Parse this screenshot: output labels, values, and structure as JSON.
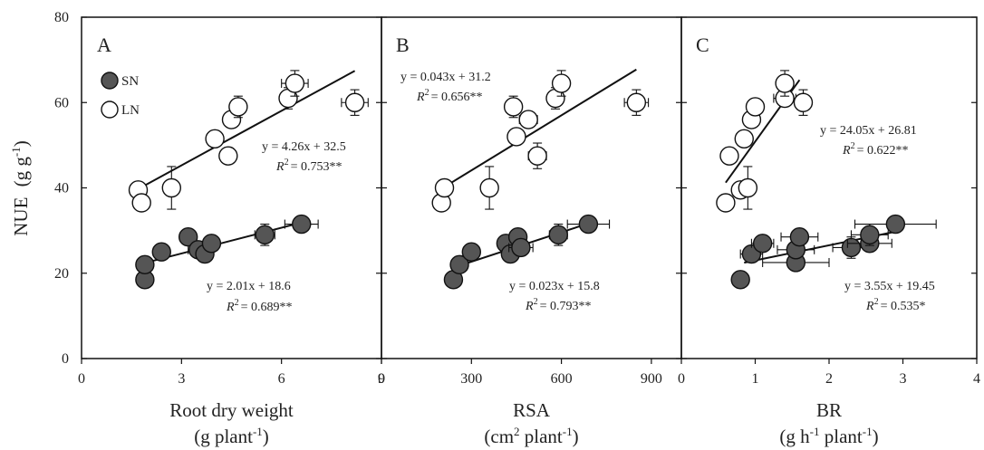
{
  "figure": {
    "ylabel": "NUE",
    "ylabel_unit": "(g g",
    "ylabel_sup": "-1",
    "ylabel_close": ")"
  },
  "legend": {
    "series": [
      "SN",
      "LN"
    ]
  },
  "chart_data": [
    {
      "type": "scatter",
      "panel": "A",
      "xlabel": "Root dry weight",
      "xunit": {
        "pre": "(g plant",
        "sup": "-1",
        "post": ")"
      },
      "xlim": [
        0,
        9
      ],
      "xticks": [
        0,
        3,
        6,
        9
      ],
      "ylim": [
        0,
        80
      ],
      "yticks": [
        0,
        20,
        40,
        60,
        80
      ],
      "series": [
        {
          "name": "SN",
          "fill": "#555555",
          "points": [
            {
              "x": 1.9,
              "y": 18.5,
              "xerr": 0,
              "yerr": 0
            },
            {
              "x": 1.9,
              "y": 22,
              "xerr": 0,
              "yerr": 0
            },
            {
              "x": 2.4,
              "y": 25,
              "xerr": 0,
              "yerr": 0
            },
            {
              "x": 3.2,
              "y": 28.5,
              "xerr": 0,
              "yerr": 0
            },
            {
              "x": 3.5,
              "y": 25.5,
              "xerr": 0.3,
              "yerr": 0
            },
            {
              "x": 3.7,
              "y": 24.5,
              "xerr": 0,
              "yerr": 0
            },
            {
              "x": 3.9,
              "y": 27,
              "xerr": 0,
              "yerr": 0
            },
            {
              "x": 5.5,
              "y": 29,
              "xerr": 0.3,
              "yerr": 2.5
            },
            {
              "x": 6.6,
              "y": 31.5,
              "xerr": 0.5,
              "yerr": 0
            }
          ],
          "fit": {
            "slope": 2.01,
            "intercept": 18.6,
            "x": [
              1.8,
              6.6
            ]
          },
          "equation": "y = 2.01x + 18.6",
          "r2": "= 0.689**"
        },
        {
          "name": "LN",
          "fill": "#ffffff",
          "points": [
            {
              "x": 1.7,
              "y": 39.5,
              "xerr": 0,
              "yerr": 0
            },
            {
              "x": 1.8,
              "y": 36.5,
              "xerr": 0,
              "yerr": 0
            },
            {
              "x": 2.7,
              "y": 40,
              "xerr": 0,
              "yerr": 5
            },
            {
              "x": 4.0,
              "y": 51.5,
              "xerr": 0,
              "yerr": 0
            },
            {
              "x": 4.4,
              "y": 47.5,
              "xerr": 0,
              "yerr": 0
            },
            {
              "x": 4.5,
              "y": 56,
              "xerr": 0,
              "yerr": 0
            },
            {
              "x": 4.7,
              "y": 59,
              "xerr": 0,
              "yerr": 2.5
            },
            {
              "x": 6.2,
              "y": 61,
              "xerr": 0,
              "yerr": 2.5
            },
            {
              "x": 6.4,
              "y": 64.5,
              "xerr": 0.4,
              "yerr": 3
            },
            {
              "x": 8.2,
              "y": 60,
              "xerr": 0.4,
              "yerr": 3
            }
          ],
          "fit": {
            "slope": 4.26,
            "intercept": 32.5,
            "x": [
              1.8,
              8.2
            ]
          },
          "equation": "y = 4.26x + 32.5",
          "r2": "= 0.753**"
        }
      ]
    },
    {
      "type": "scatter",
      "panel": "B",
      "xlabel": "RSA",
      "xunit": {
        "pre": "(cm",
        "sup1": "2",
        "mid": " plant",
        "sup": "-1",
        "post": ")"
      },
      "xlim": [
        0,
        1000
      ],
      "xticks": [
        0,
        300,
        600,
        900
      ],
      "ylim": [
        0,
        80
      ],
      "yticks": [
        0,
        20,
        40,
        60,
        80
      ],
      "series": [
        {
          "name": "SN",
          "fill": "#555555",
          "points": [
            {
              "x": 240,
              "y": 18.5,
              "xerr": 0,
              "yerr": 0
            },
            {
              "x": 260,
              "y": 22,
              "xerr": 0,
              "yerr": 0
            },
            {
              "x": 300,
              "y": 25,
              "xerr": 0,
              "yerr": 0
            },
            {
              "x": 415,
              "y": 27,
              "xerr": 0,
              "yerr": 0
            },
            {
              "x": 430,
              "y": 24.5,
              "xerr": 0,
              "yerr": 0
            },
            {
              "x": 455,
              "y": 28.5,
              "xerr": 0,
              "yerr": 0
            },
            {
              "x": 465,
              "y": 26,
              "xerr": 40,
              "yerr": 0
            },
            {
              "x": 590,
              "y": 29,
              "xerr": 30,
              "yerr": 2.5
            },
            {
              "x": 690,
              "y": 31.5,
              "xerr": 70,
              "yerr": 0
            }
          ],
          "fit": {
            "slope": 0.023,
            "intercept": 15.8,
            "x": [
              240,
              700
            ]
          },
          "equation": "y = 0.023x + 15.8",
          "r2": "= 0.793**"
        },
        {
          "name": "LN",
          "fill": "#ffffff",
          "points": [
            {
              "x": 200,
              "y": 36.5,
              "xerr": 0,
              "yerr": 0
            },
            {
              "x": 210,
              "y": 40,
              "xerr": 0,
              "yerr": 0
            },
            {
              "x": 360,
              "y": 40,
              "xerr": 0,
              "yerr": 5
            },
            {
              "x": 440,
              "y": 59,
              "xerr": 0,
              "yerr": 2.5
            },
            {
              "x": 450,
              "y": 52,
              "xerr": 0,
              "yerr": 0
            },
            {
              "x": 490,
              "y": 56,
              "xerr": 30,
              "yerr": 0
            },
            {
              "x": 520,
              "y": 47.5,
              "xerr": 30,
              "yerr": 3
            },
            {
              "x": 580,
              "y": 61,
              "xerr": 0,
              "yerr": 2.5
            },
            {
              "x": 600,
              "y": 64.5,
              "xerr": 0,
              "yerr": 3
            },
            {
              "x": 850,
              "y": 60,
              "xerr": 40,
              "yerr": 3
            }
          ],
          "fit": {
            "slope": 0.043,
            "intercept": 31.2,
            "x": [
              210,
              850
            ]
          },
          "equation": "y = 0.043x + 31.2",
          "r2": "= 0.656**"
        }
      ]
    },
    {
      "type": "scatter",
      "panel": "C",
      "xlabel": "BR",
      "xunit": {
        "pre": "(g h",
        "sup1": "-1",
        "mid": " plant",
        "sup": "-1",
        "post": ")"
      },
      "xlim": [
        0,
        4
      ],
      "xticks": [
        0,
        1,
        2,
        3,
        4
      ],
      "ylim": [
        0,
        80
      ],
      "yticks": [
        0,
        20,
        40,
        60,
        80
      ],
      "series": [
        {
          "name": "SN",
          "fill": "#555555",
          "points": [
            {
              "x": 0.8,
              "y": 18.5,
              "xerr": 0,
              "yerr": 0
            },
            {
              "x": 0.95,
              "y": 24.5,
              "xerr": 0.15,
              "yerr": 0
            },
            {
              "x": 1.1,
              "y": 27,
              "xerr": 0.15,
              "yerr": 0
            },
            {
              "x": 1.55,
              "y": 22.5,
              "xerr": 0.45,
              "yerr": 0
            },
            {
              "x": 1.55,
              "y": 25.5,
              "xerr": 0.25,
              "yerr": 0
            },
            {
              "x": 1.6,
              "y": 28.5,
              "xerr": 0.25,
              "yerr": 0
            },
            {
              "x": 2.3,
              "y": 26,
              "xerr": 0.25,
              "yerr": 2.5
            },
            {
              "x": 2.55,
              "y": 27,
              "xerr": 0.3,
              "yerr": 0
            },
            {
              "x": 2.55,
              "y": 29,
              "xerr": 0.25,
              "yerr": 2.5
            },
            {
              "x": 2.9,
              "y": 31.5,
              "xerr": 0.55,
              "yerr": 0
            }
          ],
          "fit": {
            "slope": 3.55,
            "intercept": 19.45,
            "x": [
              0.85,
              2.95
            ]
          },
          "equation": "y = 3.55x + 19.45",
          "r2": "= 0.535*"
        },
        {
          "name": "LN",
          "fill": "#ffffff",
          "points": [
            {
              "x": 0.6,
              "y": 36.5,
              "xerr": 0,
              "yerr": 0
            },
            {
              "x": 0.65,
              "y": 47.5,
              "xerr": 0,
              "yerr": 0
            },
            {
              "x": 0.8,
              "y": 39.5,
              "xerr": 0,
              "yerr": 0
            },
            {
              "x": 0.85,
              "y": 51.5,
              "xerr": 0,
              "yerr": 0
            },
            {
              "x": 0.9,
              "y": 40,
              "xerr": 0,
              "yerr": 5
            },
            {
              "x": 0.95,
              "y": 56,
              "xerr": 0,
              "yerr": 0
            },
            {
              "x": 1.0,
              "y": 59,
              "xerr": 0,
              "yerr": 0
            },
            {
              "x": 1.4,
              "y": 61,
              "xerr": 0.15,
              "yerr": 0
            },
            {
              "x": 1.4,
              "y": 64.5,
              "xerr": 0,
              "yerr": 3
            },
            {
              "x": 1.65,
              "y": 60,
              "xerr": 0,
              "yerr": 3
            }
          ],
          "fit": {
            "slope": 24.05,
            "intercept": 26.81,
            "x": [
              0.6,
              1.6
            ]
          },
          "equation": "y = 24.05x + 26.81",
          "r2": "= 0.622**"
        }
      ]
    }
  ]
}
